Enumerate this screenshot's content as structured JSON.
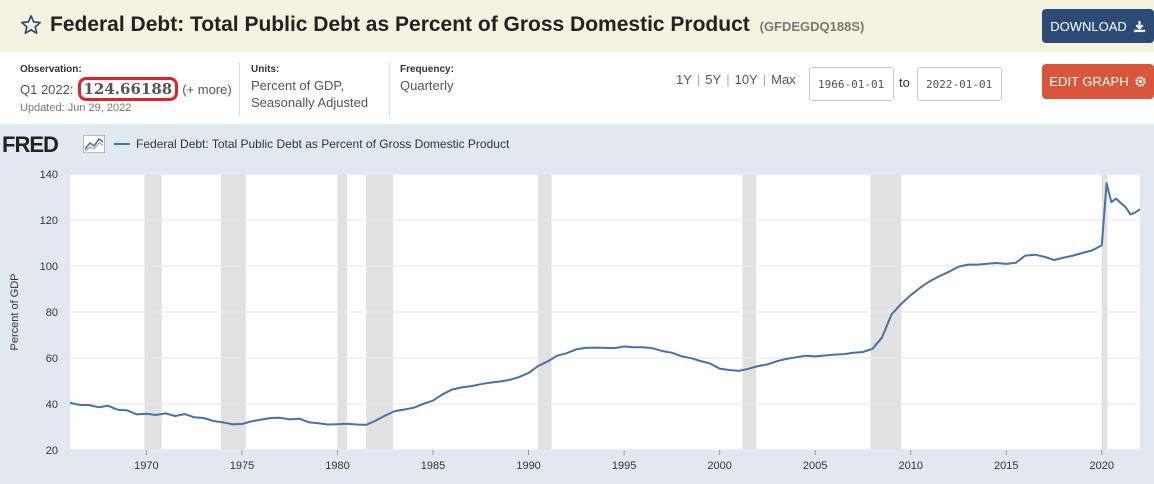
{
  "header": {
    "title": "Federal Debt: Total Public Debt as Percent of Gross Domestic Product",
    "series_id": "(GFDEGDQ188S)",
    "download_label": "DOWNLOAD"
  },
  "meta": {
    "observation_label": "Observation:",
    "observation_period": "Q1 2022:",
    "observation_value": "124.66188",
    "more_label": "(+ more)",
    "updated": "Updated: Jun 29, 2022",
    "units_label": "Units:",
    "units_value_1": "Percent of GDP,",
    "units_value_2": "Seasonally Adjusted",
    "frequency_label": "Frequency:",
    "frequency_value": "Quarterly"
  },
  "ranges": [
    "1Y",
    "5Y",
    "10Y",
    "Max"
  ],
  "date_from": "1966-01-01",
  "date_to": "2022-01-01",
  "to_label": "to",
  "edit_label": "EDIT GRAPH",
  "logo_text": "FRED",
  "colors": {
    "series": "#4572a7",
    "recession": "#e1e1e1",
    "download": "#2b4a75",
    "edit": "#d9553b",
    "highlight": "#e0232a"
  },
  "chart_data": {
    "type": "line",
    "title": "",
    "xlabel": "",
    "ylabel": "Percent of GDP",
    "xlim": [
      1966.0,
      2022.0
    ],
    "ylim": [
      20,
      140
    ],
    "yticks": [
      20,
      40,
      60,
      80,
      100,
      120,
      140
    ],
    "xticks": [
      1970,
      1975,
      1980,
      1985,
      1990,
      1995,
      2000,
      2005,
      2010,
      2015,
      2020
    ],
    "grid": true,
    "legend": "top-left",
    "recessions": [
      [
        1969.9,
        1970.8
      ],
      [
        1973.9,
        1975.2
      ],
      [
        1980.0,
        1980.5
      ],
      [
        1981.5,
        1982.9
      ],
      [
        1990.5,
        1991.2
      ],
      [
        2001.2,
        2001.9
      ],
      [
        2007.9,
        2009.5
      ],
      [
        2020.0,
        2020.3
      ]
    ],
    "series": [
      {
        "name": "Federal Debt: Total Public Debt as Percent of Gross Domestic Product",
        "x": [
          1966.0,
          1966.5,
          1967.0,
          1967.5,
          1968.0,
          1968.5,
          1969.0,
          1969.5,
          1970.0,
          1970.5,
          1971.0,
          1971.5,
          1972.0,
          1972.5,
          1973.0,
          1973.5,
          1974.0,
          1974.5,
          1975.0,
          1975.5,
          1976.0,
          1976.5,
          1977.0,
          1977.5,
          1978.0,
          1978.5,
          1979.0,
          1979.5,
          1980.0,
          1980.5,
          1981.0,
          1981.5,
          1982.0,
          1982.5,
          1983.0,
          1983.5,
          1984.0,
          1984.5,
          1985.0,
          1985.5,
          1986.0,
          1986.5,
          1987.0,
          1987.5,
          1988.0,
          1988.5,
          1989.0,
          1989.5,
          1990.0,
          1990.5,
          1991.0,
          1991.5,
          1992.0,
          1992.5,
          1993.0,
          1993.5,
          1994.0,
          1994.5,
          1995.0,
          1995.5,
          1996.0,
          1996.5,
          1997.0,
          1997.5,
          1998.0,
          1998.5,
          1999.0,
          1999.5,
          2000.0,
          2000.5,
          2001.0,
          2001.5,
          2002.0,
          2002.5,
          2003.0,
          2003.5,
          2004.0,
          2004.5,
          2005.0,
          2005.5,
          2006.0,
          2006.5,
          2007.0,
          2007.5,
          2008.0,
          2008.5,
          2009.0,
          2009.5,
          2010.0,
          2010.5,
          2011.0,
          2011.5,
          2012.0,
          2012.5,
          2013.0,
          2013.5,
          2014.0,
          2014.5,
          2015.0,
          2015.5,
          2016.0,
          2016.5,
          2017.0,
          2017.5,
          2018.0,
          2018.5,
          2019.0,
          2019.5,
          2020.0,
          2020.25,
          2020.5,
          2020.75,
          2021.0,
          2021.25,
          2021.5,
          2021.75,
          2022.0
        ],
        "values": [
          40.5,
          39.6,
          39.5,
          38.6,
          39.2,
          37.5,
          37.2,
          35.5,
          35.8,
          35.2,
          35.9,
          34.8,
          35.6,
          34.2,
          33.9,
          32.6,
          32.0,
          31.2,
          31.3,
          32.5,
          33.2,
          33.9,
          34.0,
          33.3,
          33.6,
          32.1,
          31.6,
          31.1,
          31.2,
          31.4,
          31.1,
          30.9,
          32.8,
          35.0,
          36.9,
          37.6,
          38.4,
          40.1,
          41.5,
          44.2,
          46.3,
          47.2,
          47.8,
          48.6,
          49.3,
          49.8,
          50.5,
          51.7,
          53.5,
          56.5,
          58.5,
          61.0,
          62.1,
          63.8,
          64.4,
          64.5,
          64.4,
          64.3,
          65.0,
          64.7,
          64.7,
          64.2,
          63.0,
          62.3,
          60.8,
          59.9,
          58.7,
          57.6,
          55.4,
          54.8,
          54.4,
          55.3,
          56.5,
          57.2,
          58.6,
          59.6,
          60.3,
          61.0,
          60.7,
          61.1,
          61.5,
          61.7,
          62.3,
          62.6,
          64.0,
          69.0,
          79.0,
          83.5,
          87.3,
          90.6,
          93.4,
          95.6,
          97.5,
          99.7,
          100.6,
          100.6,
          101.0,
          101.3,
          100.9,
          101.4,
          104.5,
          104.9,
          104.0,
          102.6,
          103.6,
          104.5,
          105.7,
          106.8,
          109.0,
          136.0,
          127.8,
          129.3,
          127.3,
          125.5,
          122.5,
          123.2,
          124.7
        ]
      }
    ]
  }
}
